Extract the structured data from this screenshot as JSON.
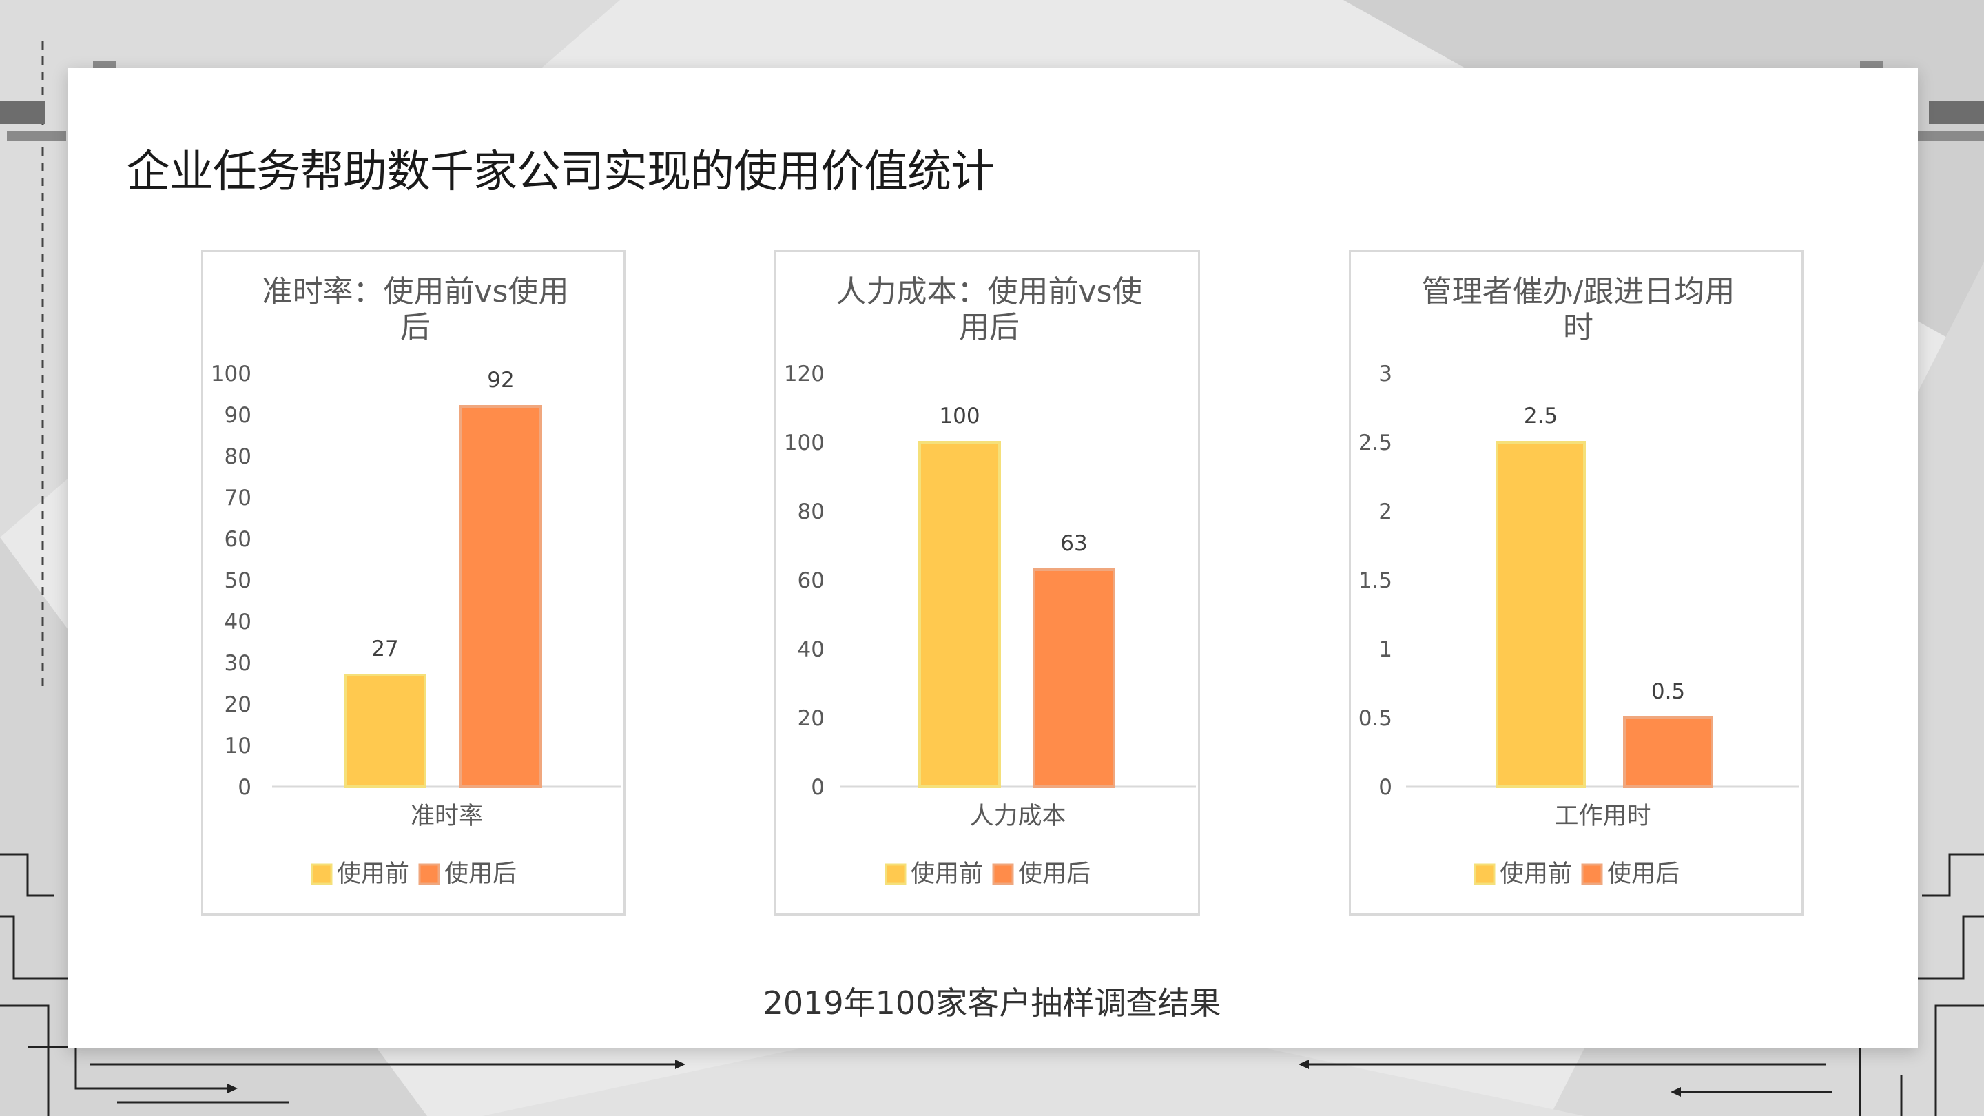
{
  "page": {
    "title": "企业任务帮助数千家公司实现的使用价值统计",
    "footnote": "2019年100家客户抽样调查结果"
  },
  "colors": {
    "before": "#FFC94F",
    "after": "#FF8C4A",
    "before_border": "#F5E07A",
    "after_border": "#F0A77E",
    "axis_text": "#595959",
    "title_text": "#595959",
    "grid_line": "#d9d9d9"
  },
  "chart_data": [
    {
      "type": "bar",
      "title": [
        "准时率：使用前vs使用",
        "后"
      ],
      "categories": [
        "准时率"
      ],
      "series": [
        {
          "name": "使用前",
          "values": [
            27
          ]
        },
        {
          "name": "使用后",
          "values": [
            92
          ]
        }
      ],
      "data_labels": [
        "27",
        "92"
      ],
      "ylim": [
        0,
        100
      ],
      "yticks": [
        "0",
        "10",
        "20",
        "30",
        "40",
        "50",
        "60",
        "70",
        "80",
        "90",
        "100"
      ],
      "legend": "bottom",
      "grid": false
    },
    {
      "type": "bar",
      "title": [
        "人力成本：使用前vs使",
        "用后"
      ],
      "categories": [
        "人力成本"
      ],
      "series": [
        {
          "name": "使用前",
          "values": [
            100
          ]
        },
        {
          "name": "使用后",
          "values": [
            63
          ]
        }
      ],
      "data_labels": [
        "100",
        "63"
      ],
      "ylim": [
        0,
        120
      ],
      "yticks": [
        "0",
        "20",
        "40",
        "60",
        "80",
        "100",
        "120"
      ],
      "legend": "bottom",
      "grid": false
    },
    {
      "type": "bar",
      "title": [
        "管理者催办/跟进日均用",
        "时"
      ],
      "categories": [
        "工作用时"
      ],
      "series": [
        {
          "name": "使用前",
          "values": [
            2.5
          ]
        },
        {
          "name": "使用后",
          "values": [
            0.5
          ]
        }
      ],
      "data_labels": [
        "2.5",
        "0.5"
      ],
      "ylim": [
        0,
        3
      ],
      "yticks": [
        "0",
        "0.5",
        "1",
        "1.5",
        "2",
        "2.5",
        "3"
      ],
      "legend": "bottom",
      "grid": false
    }
  ]
}
